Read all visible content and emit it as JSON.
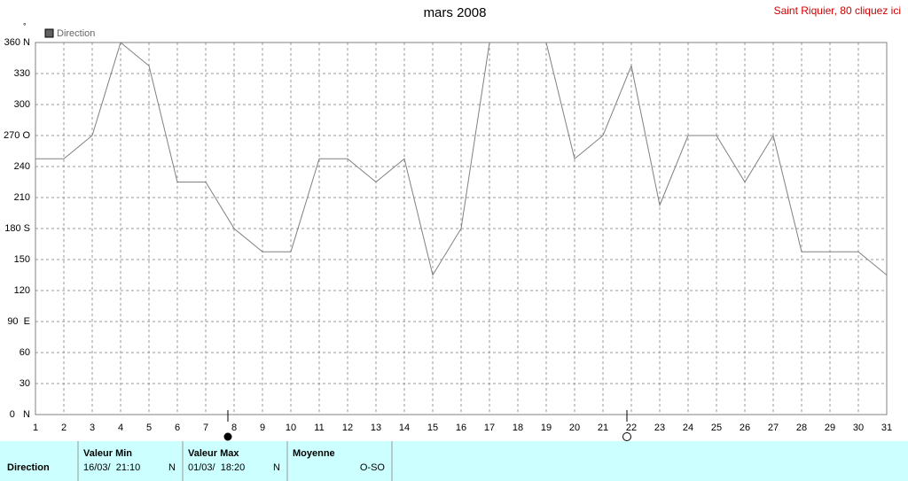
{
  "chart_data": {
    "type": "line",
    "title": "mars 2008",
    "unit": "°",
    "link": "Saint Riquier, 80 cliquez ici",
    "x": [
      1,
      2,
      3,
      4,
      5,
      6,
      7,
      8,
      9,
      10,
      11,
      12,
      13,
      14,
      15,
      16,
      17,
      18,
      19,
      20,
      21,
      22,
      23,
      24,
      25,
      26,
      27,
      28,
      29,
      30,
      31
    ],
    "series": [
      {
        "name": "Direction",
        "color": "#808080",
        "values": [
          247.5,
          247.5,
          270,
          360,
          337.5,
          225,
          225,
          180,
          157.5,
          157.5,
          247.5,
          247.5,
          225,
          247.5,
          135,
          180,
          360,
          360,
          360,
          247.5,
          270,
          337.5,
          202.5,
          270,
          270,
          225,
          270,
          157.5,
          157.5,
          157.5,
          135
        ]
      }
    ],
    "xlim": [
      1,
      31
    ],
    "xticks": [
      1,
      2,
      3,
      4,
      5,
      6,
      7,
      8,
      9,
      10,
      11,
      12,
      13,
      14,
      15,
      16,
      17,
      18,
      19,
      20,
      21,
      22,
      23,
      24,
      25,
      26,
      27,
      28,
      29,
      30,
      31
    ],
    "ylim": [
      0,
      360
    ],
    "yticks": [
      {
        "value": 0,
        "label": "0   N"
      },
      30,
      60,
      {
        "value": 90,
        "label": "90  E"
      },
      120,
      150,
      {
        "value": 180,
        "label": "180 S"
      },
      210,
      240,
      {
        "value": 270,
        "label": "270 O"
      },
      300,
      330,
      {
        "value": 360,
        "label": "360 N"
      }
    ],
    "grid": true
  },
  "table": {
    "headers": [
      "Valeur Min",
      "Valeur Max",
      "Moyenne"
    ],
    "rows": [
      [
        "Direction",
        "16/03/  21:10",
        "N",
        "01/03/  18:20",
        "N",
        "O-SO"
      ]
    ]
  }
}
